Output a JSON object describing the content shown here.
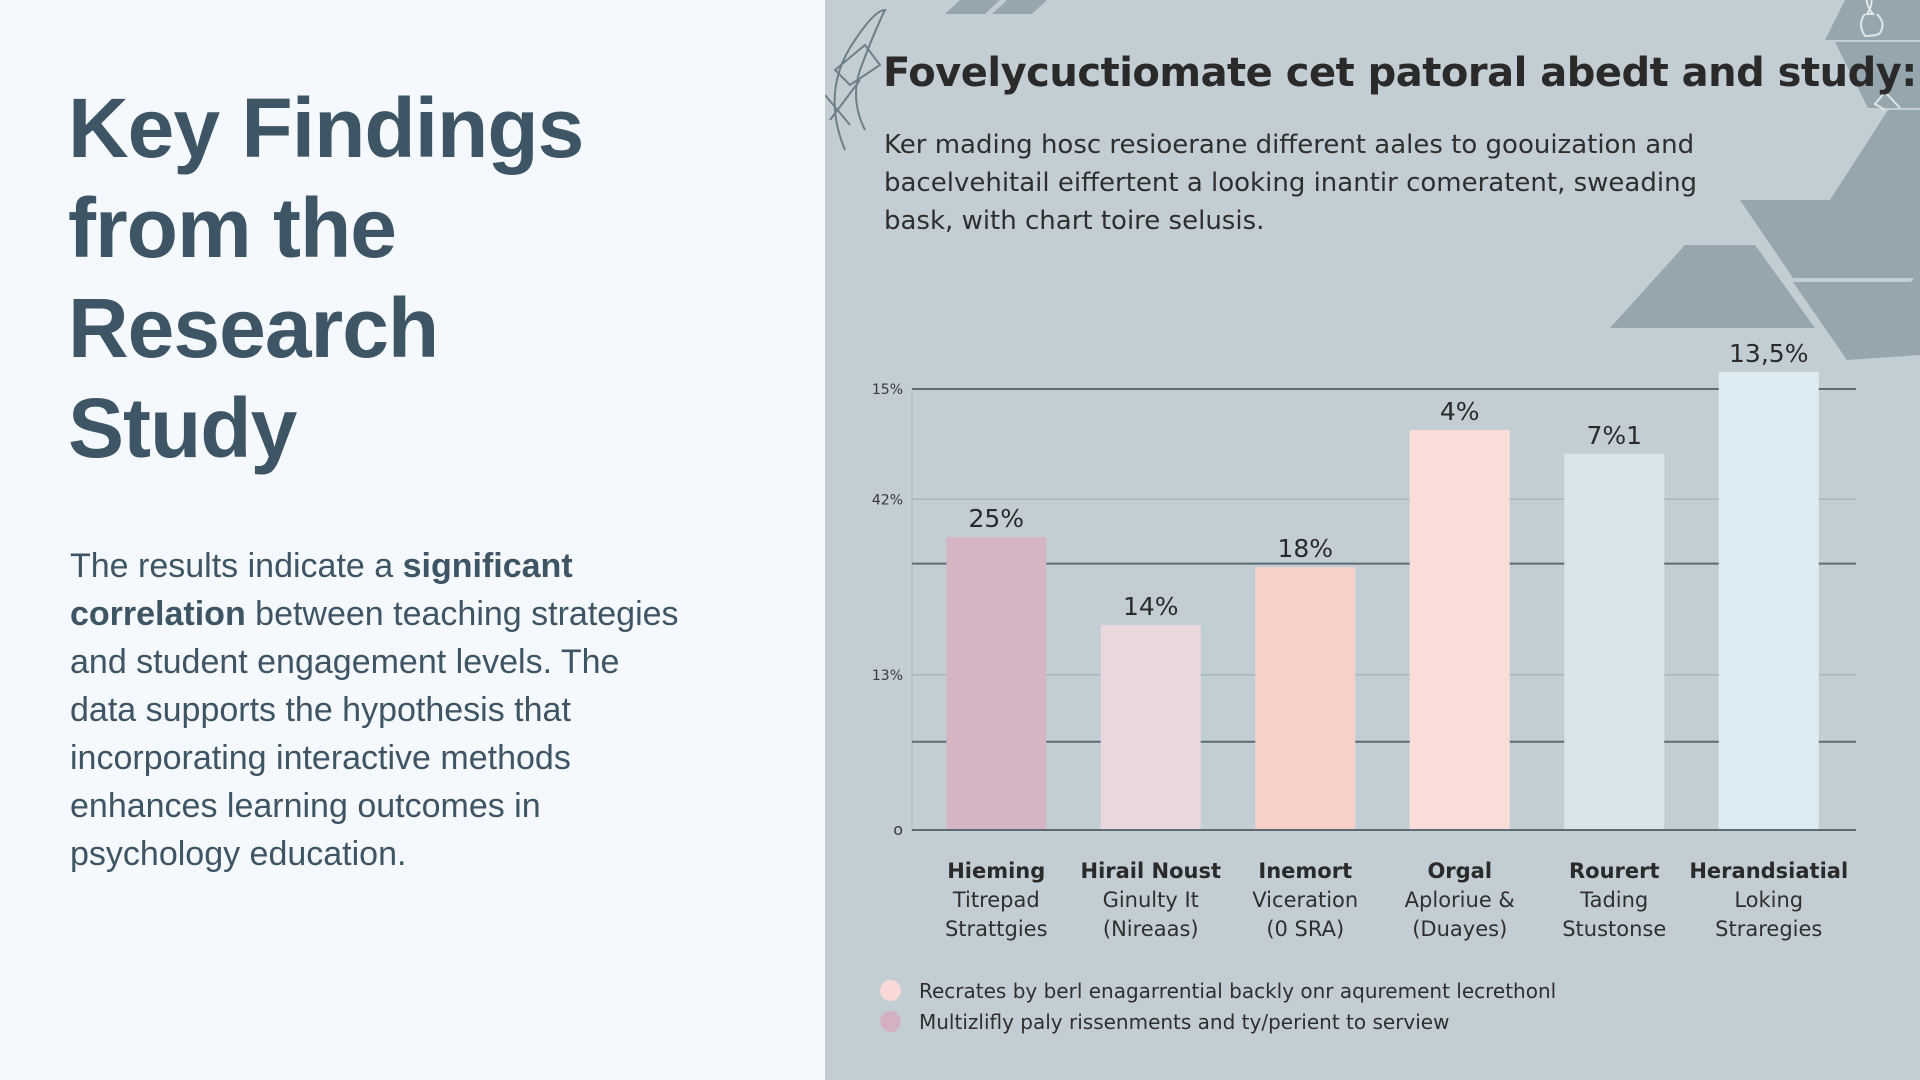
{
  "left": {
    "title_lines": [
      "Key Findings",
      "from the",
      "Research",
      "Study"
    ],
    "body": {
      "intro": "The results indicate a ",
      "bold": "significant correlation",
      "rest": " between teaching strategies and student engagement levels. The data supports the hypothesis that incorporating interactive methods enhances learning outcomes in psychology education."
    }
  },
  "colors": {
    "title": "#3d5564",
    "left_bg": "#f5f8fc",
    "right_bg": "#c3ced4",
    "grid_dark": "#5d6b73",
    "grid_light": "#a9b6bd",
    "deco_shape": "#95a6ae"
  },
  "chart_data": {
    "type": "bar",
    "title": "Fovelycuctiomate cet patoral abedt and study:",
    "subtitle_lines": [
      "Ker mading hosc resioerane different aales to goouization and",
      "bacelvehitail eiffertent a looking inantir comeratent, sweading",
      "bask, with chart toire selusis."
    ],
    "xlabel": "",
    "ylabel": "",
    "grid": true,
    "y_ticks": [
      {
        "label": "15%",
        "level": 1.0,
        "style": "dark"
      },
      {
        "label": "42%",
        "level": 0.75,
        "style": "light"
      },
      {
        "label": "",
        "level": 0.604,
        "style": "dark"
      },
      {
        "label": "13%",
        "level": 0.352,
        "style": "light"
      },
      {
        "label": "",
        "level": 0.2,
        "style": "dark"
      },
      {
        "label": "o",
        "level": 0.0,
        "style": "dark"
      }
    ],
    "categories": [
      {
        "line1": "Hieming",
        "line2": "Titrepad",
        "line3": "Strattgies"
      },
      {
        "line1": "Hirail Noust",
        "line2": "Ginulty It",
        "line3": "(Nireaas)"
      },
      {
        "line1": "Inemort",
        "line2": "Viceration",
        "line3": "(0 SRA)"
      },
      {
        "line1": "Orgal",
        "line2": "Aploriue &",
        "line3": "(Duayes)"
      },
      {
        "line1": "Rourert",
        "line2": "Tading",
        "line3": "Stustonse"
      },
      {
        "line1": "Herandsiatial",
        "line2": "Loking",
        "line3": "Straregies"
      }
    ],
    "value_labels": [
      "25%",
      "14%",
      "18%",
      "4%",
      "7%1",
      "13,5%"
    ],
    "bar_levels": [
      0.664,
      0.465,
      0.596,
      0.907,
      0.853,
      1.039
    ],
    "bar_colors": [
      "#d5b5c4",
      "#e8d8de",
      "#f6d0c9",
      "#fadcd8",
      "#d9e5e8",
      "#ddecf3"
    ],
    "legend": [
      {
        "label": "Recrates by berl enagarrential backly onr aqurement lecrethonl",
        "color": "#f8d9d7"
      },
      {
        "label": "Multizlifly paly rissenments and ty/perient to serview",
        "color": "#d3b1c0"
      }
    ],
    "legend_position": "bottom-left"
  }
}
